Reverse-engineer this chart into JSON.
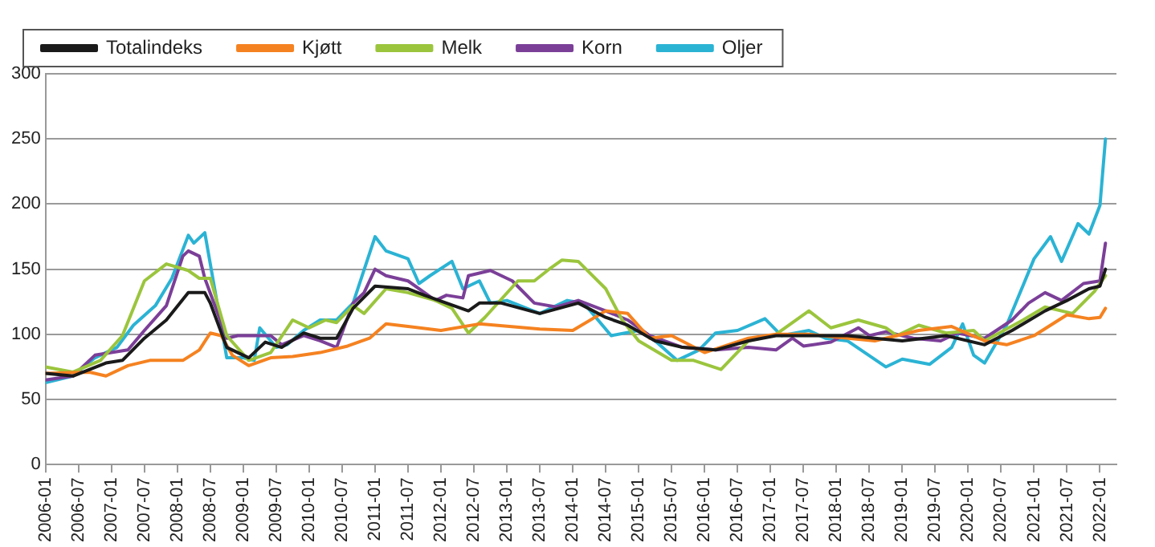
{
  "chart_data": {
    "type": "line",
    "legend": "top left",
    "grid": "y",
    "marker": "none",
    "line_style": "solid",
    "xlim": [
      "2006-01",
      "2022-04"
    ],
    "xticks": [
      "2006-01",
      "2006-07",
      "2007-01",
      "2007-07",
      "2008-01",
      "2008-07",
      "2009-01",
      "2009-07",
      "2010-01",
      "2010-07",
      "2011-01",
      "2011-07",
      "2012-01",
      "2012-07",
      "2013-01",
      "2013-07",
      "2014-01",
      "2014-07",
      "2015-01",
      "2015-07",
      "2016-01",
      "2016-07",
      "2017-01",
      "2017-07",
      "2018-01",
      "2018-07",
      "2019-01",
      "2019-07",
      "2020-01",
      "2020-07",
      "2021-01",
      "2021-07",
      "2022-01"
    ],
    "ylim": [
      0,
      300
    ],
    "yticks": [
      0,
      50,
      100,
      150,
      200,
      250,
      300
    ],
    "series": [
      {
        "name": "Totalindeks",
        "color": "#1a1a1a",
        "x": [
          "2006-01",
          "2006-06",
          "2006-12",
          "2007-03",
          "2007-07",
          "2007-11",
          "2008-03",
          "2008-06",
          "2008-07",
          "2008-10",
          "2009-02",
          "2009-05",
          "2009-08",
          "2009-12",
          "2010-03",
          "2010-06",
          "2010-09",
          "2011-01",
          "2011-07",
          "2011-10",
          "2012-02",
          "2012-06",
          "2012-08",
          "2012-12",
          "2013-07",
          "2014-02",
          "2014-07",
          "2014-11",
          "2015-04",
          "2015-09",
          "2016-03",
          "2016-09",
          "2017-02",
          "2017-05",
          "2018-03",
          "2019-01",
          "2019-09",
          "2020-04",
          "2020-09",
          "2021-03",
          "2021-07",
          "2021-11",
          "2022-01",
          "2022-02"
        ],
        "values": [
          70,
          68,
          78,
          80,
          97,
          111,
          132,
          132,
          124,
          90,
          82,
          94,
          90,
          101,
          97,
          97,
          120,
          137,
          135,
          130,
          124,
          118,
          124,
          124,
          116,
          124,
          113,
          107,
          95,
          90,
          88,
          95,
          99,
          99,
          99,
          95,
          99,
          92,
          103,
          118,
          126,
          135,
          137,
          150
        ]
      },
      {
        "name": "Kjøtt",
        "color": "#f58220",
        "x": [
          "2006-01",
          "2006-09",
          "2006-12",
          "2007-04",
          "2007-08",
          "2008-02",
          "2008-05",
          "2008-07",
          "2008-09",
          "2008-11",
          "2009-02",
          "2009-06",
          "2009-10",
          "2010-03",
          "2010-08",
          "2010-12",
          "2011-03",
          "2011-07",
          "2012-01",
          "2012-08",
          "2013-07",
          "2014-01",
          "2014-07",
          "2014-11",
          "2015-03",
          "2015-07",
          "2016-01",
          "2016-09",
          "2017-02",
          "2017-08",
          "2018-08",
          "2019-04",
          "2019-10",
          "2020-04",
          "2020-08",
          "2021-01",
          "2021-07",
          "2021-11",
          "2022-01",
          "2022-02"
        ],
        "values": [
          70,
          71,
          68,
          76,
          80,
          80,
          88,
          101,
          99,
          84,
          76,
          82,
          83,
          86,
          91,
          97,
          108,
          106,
          103,
          108,
          104,
          103,
          118,
          116,
          97,
          99,
          86,
          97,
          100,
          100,
          95,
          103,
          106,
          95,
          92,
          99,
          115,
          112,
          113,
          120
        ]
      },
      {
        "name": "Melk",
        "color": "#9bc53d",
        "x": [
          "2006-01",
          "2006-06",
          "2006-11",
          "2007-03",
          "2007-07",
          "2007-11",
          "2008-03",
          "2008-05",
          "2008-07",
          "2008-10",
          "2009-02",
          "2009-06",
          "2009-10",
          "2010-01",
          "2010-04",
          "2010-06",
          "2010-09",
          "2010-11",
          "2011-03",
          "2011-07",
          "2011-12",
          "2012-03",
          "2012-06",
          "2012-09",
          "2013-03",
          "2013-06",
          "2013-09",
          "2013-11",
          "2014-02",
          "2014-07",
          "2014-10",
          "2015-01",
          "2015-07",
          "2015-11",
          "2016-04",
          "2016-09",
          "2017-02",
          "2017-08",
          "2017-12",
          "2018-05",
          "2018-10",
          "2018-12",
          "2019-04",
          "2019-09",
          "2020-02",
          "2020-04",
          "2020-11",
          "2021-03",
          "2021-08",
          "2021-12",
          "2022-02"
        ],
        "values": [
          75,
          71,
          80,
          99,
          141,
          154,
          149,
          143,
          143,
          99,
          80,
          86,
          111,
          105,
          111,
          109,
          122,
          116,
          135,
          132,
          126,
          120,
          101,
          113,
          141,
          141,
          151,
          157,
          156,
          135,
          111,
          95,
          80,
          80,
          73,
          95,
          100,
          118,
          105,
          111,
          105,
          99,
          107,
          101,
          103,
          95,
          111,
          121,
          116,
          133,
          145
        ]
      },
      {
        "name": "Korn",
        "color": "#7b3f98",
        "x": [
          "2006-01",
          "2006-06",
          "2006-10",
          "2007-01",
          "2007-04",
          "2007-07",
          "2007-11",
          "2008-02",
          "2008-03",
          "2008-05",
          "2008-06",
          "2008-10",
          "2008-12",
          "2009-06",
          "2009-08",
          "2009-12",
          "2010-03",
          "2010-06",
          "2010-09",
          "2010-11",
          "2011-01",
          "2011-03",
          "2011-07",
          "2011-12",
          "2012-02",
          "2012-05",
          "2012-06",
          "2012-10",
          "2013-02",
          "2013-06",
          "2013-10",
          "2014-02",
          "2014-07",
          "2014-11",
          "2015-03",
          "2015-09",
          "2016-03",
          "2016-09",
          "2017-02",
          "2017-05",
          "2017-07",
          "2017-12",
          "2018-05",
          "2018-07",
          "2018-10",
          "2019-03",
          "2019-08",
          "2019-11",
          "2020-04",
          "2020-09",
          "2020-12",
          "2021-03",
          "2021-06",
          "2021-10",
          "2022-01",
          "2022-02"
        ],
        "values": [
          65,
          68,
          84,
          86,
          88,
          103,
          122,
          160,
          164,
          160,
          143,
          97,
          99,
          99,
          92,
          99,
          95,
          90,
          124,
          132,
          150,
          145,
          141,
          126,
          130,
          128,
          145,
          149,
          141,
          124,
          121,
          126,
          118,
          111,
          99,
          90,
          88,
          90,
          88,
          97,
          91,
          94,
          105,
          99,
          102,
          97,
          95,
          101,
          97,
          111,
          124,
          132,
          126,
          139,
          141,
          170
        ]
      },
      {
        "name": "Oljer",
        "color": "#2bb3d4",
        "x": [
          "2006-01",
          "2006-06",
          "2006-10",
          "2007-02",
          "2007-05",
          "2007-09",
          "2007-12",
          "2008-03",
          "2008-04",
          "2008-06",
          "2008-07",
          "2008-10",
          "2009-01",
          "2009-03",
          "2009-04",
          "2009-07",
          "2009-09",
          "2009-12",
          "2010-03",
          "2010-06",
          "2010-09",
          "2011-01",
          "2011-03",
          "2011-07",
          "2011-09",
          "2011-11",
          "2012-03",
          "2012-05",
          "2012-08",
          "2012-10",
          "2013-01",
          "2013-07",
          "2013-12",
          "2014-03",
          "2014-08",
          "2015-01",
          "2015-04",
          "2015-08",
          "2015-12",
          "2016-03",
          "2016-07",
          "2016-12",
          "2017-03",
          "2017-08",
          "2017-11",
          "2018-03",
          "2018-10",
          "2019-01",
          "2019-06",
          "2019-10",
          "2019-12",
          "2020-02",
          "2020-04",
          "2020-08",
          "2021-01",
          "2021-04",
          "2021-06",
          "2021-09",
          "2021-11",
          "2022-01",
          "2022-02"
        ],
        "values": [
          63,
          68,
          82,
          90,
          107,
          122,
          143,
          176,
          170,
          178,
          154,
          82,
          82,
          80,
          105,
          90,
          92,
          103,
          111,
          111,
          124,
          175,
          164,
          158,
          139,
          145,
          156,
          135,
          141,
          124,
          126,
          116,
          126,
          124,
          99,
          103,
          95,
          80,
          88,
          101,
          103,
          112,
          99,
          103,
          97,
          95,
          75,
          81,
          77,
          90,
          108,
          84,
          78,
          107,
          158,
          175,
          156,
          185,
          177,
          199,
          250
        ]
      }
    ]
  }
}
